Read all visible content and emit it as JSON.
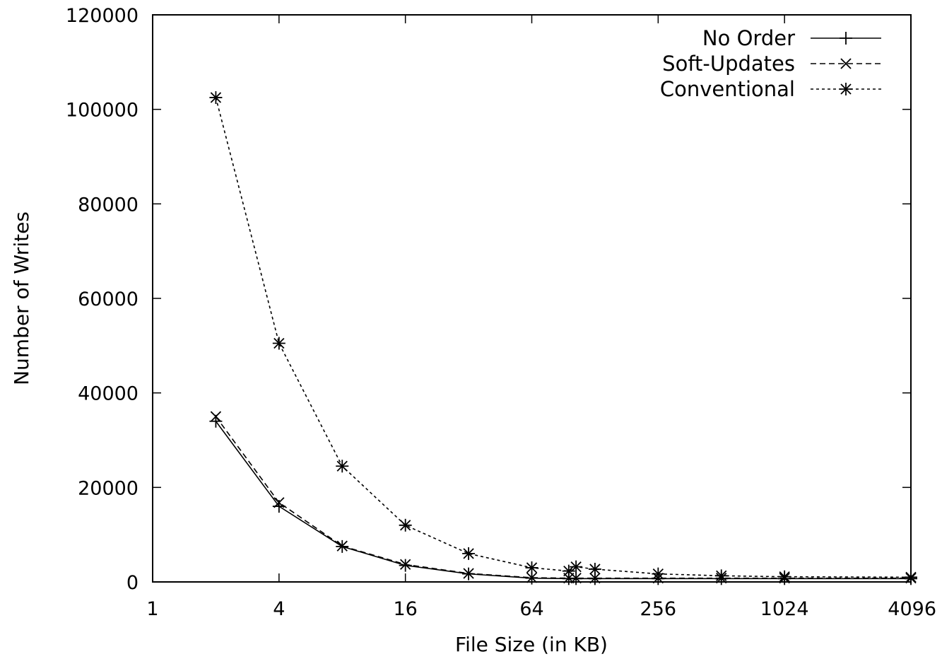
{
  "chart_data": {
    "type": "line",
    "xscale": "log2",
    "xlabel": "File Size (in KB)",
    "ylabel": "Number of Writes",
    "xlim": [
      1,
      4096
    ],
    "ylim": [
      0,
      120000
    ],
    "xticks": [
      1,
      4,
      16,
      64,
      256,
      1024,
      4096
    ],
    "xtick_labels": [
      "1",
      "4",
      "16",
      "64",
      "256",
      "1024",
      "4096"
    ],
    "yticks": [
      0,
      20000,
      40000,
      60000,
      80000,
      100000,
      120000
    ],
    "ytick_labels": [
      "0",
      "20000",
      "40000",
      "60000",
      "80000",
      "100000",
      "120000"
    ],
    "grid": false,
    "legend_position": "top-right",
    "series": [
      {
        "name": "No Order",
        "line": "solid",
        "marker": "plus",
        "x": [
          2,
          4,
          8,
          16,
          32,
          64,
          96,
          104,
          128,
          256,
          512,
          1024,
          4096
        ],
        "y": [
          34000,
          16000,
          7500,
          3500,
          1700,
          800,
          700,
          700,
          700,
          700,
          700,
          700,
          700
        ]
      },
      {
        "name": "Soft-Updates",
        "line": "dashed",
        "marker": "cross",
        "x": [
          2,
          4,
          8,
          16,
          32,
          64,
          96,
          104,
          128,
          256,
          512,
          1024,
          4096
        ],
        "y": [
          35000,
          16800,
          7600,
          3700,
          1800,
          900,
          800,
          800,
          800,
          800,
          800,
          800,
          800
        ]
      },
      {
        "name": "Conventional",
        "line": "dotted",
        "marker": "star",
        "x": [
          2,
          4,
          8,
          16,
          32,
          64,
          96,
          104,
          128,
          256,
          512,
          1024,
          4096
        ],
        "y": [
          102500,
          50500,
          24500,
          12000,
          6000,
          3000,
          2300,
          3200,
          2700,
          1700,
          1300,
          1100,
          1000
        ]
      }
    ]
  }
}
